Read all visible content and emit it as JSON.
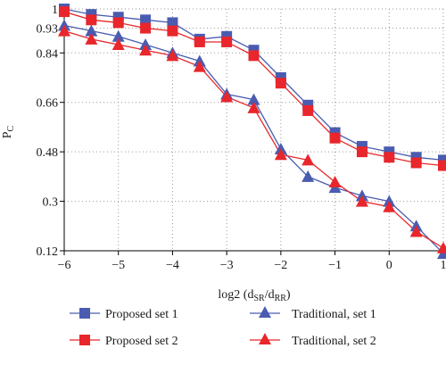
{
  "chart_data": {
    "type": "line",
    "title": "",
    "xlabel": "log2 (d",
    "xlabel_sub1": "SR",
    "xlabel_mid": "/d",
    "xlabel_sub2": "RR",
    "xlabel_end": ")",
    "ylabel": "P",
    "ylabel_sub": "C",
    "xlim": [
      -6,
      1
    ],
    "ylim": [
      0.12,
      1.0
    ],
    "x_ticks": [
      -6,
      -5,
      -4,
      -3,
      -2,
      -1,
      0,
      1
    ],
    "x_tick_labels": [
      "−6",
      "−5",
      "−4",
      "−3",
      "−2",
      "−1",
      "0",
      "1"
    ],
    "y_ticks": [
      0.12,
      0.3,
      0.48,
      0.66,
      0.84,
      0.93,
      1.0
    ],
    "y_tick_labels": [
      "0.12",
      "0.3",
      "0.48",
      "0.66",
      "0.84",
      "0.93",
      "1"
    ],
    "grid": "dotted, both axes",
    "legend_position": "bottom",
    "x": [
      -6,
      -5.5,
      -5,
      -4.5,
      -4,
      -3.5,
      -3,
      -2.5,
      -2,
      -1.5,
      -1,
      -0.5,
      0,
      0.5,
      1
    ],
    "series": [
      {
        "name": "Proposed set 1",
        "color": "#4a5cb0",
        "marker": "square",
        "values": [
          1.0,
          0.98,
          0.97,
          0.96,
          0.95,
          0.89,
          0.9,
          0.85,
          0.75,
          0.65,
          0.55,
          0.5,
          0.48,
          0.46,
          0.45
        ]
      },
      {
        "name": "Proposed set 2",
        "color": "#e8262b",
        "marker": "square",
        "values": [
          0.99,
          0.96,
          0.95,
          0.93,
          0.92,
          0.88,
          0.88,
          0.83,
          0.73,
          0.63,
          0.53,
          0.48,
          0.46,
          0.44,
          0.43
        ]
      },
      {
        "name": "Traditional, set 1",
        "color": "#4a5cb0",
        "marker": "triangle",
        "values": [
          0.94,
          0.92,
          0.9,
          0.87,
          0.84,
          0.81,
          0.69,
          0.67,
          0.49,
          0.39,
          0.35,
          0.32,
          0.3,
          0.21,
          0.11
        ]
      },
      {
        "name": "Traditional, set 2",
        "color": "#e8262b",
        "marker": "triangle",
        "values": [
          0.92,
          0.89,
          0.87,
          0.85,
          0.83,
          0.79,
          0.68,
          0.64,
          0.47,
          0.45,
          0.37,
          0.3,
          0.28,
          0.19,
          0.13
        ]
      }
    ]
  }
}
